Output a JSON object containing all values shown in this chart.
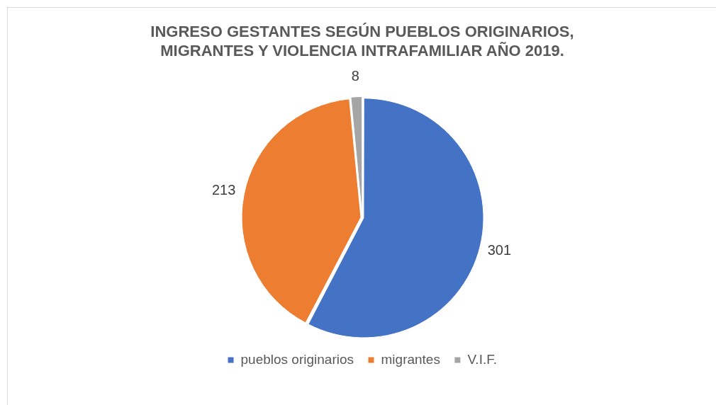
{
  "chart_data": {
    "type": "pie",
    "title": "INGRESO GESTANTES SEGÚN PUEBLOS ORIGINARIOS, MIGRANTES Y VIOLENCIA INTRAFAMILIAR AÑO 2019.",
    "categories": [
      "pueblos originarios",
      "migrantes",
      "V.I.F."
    ],
    "values": [
      301,
      213,
      8
    ],
    "colors": [
      "#4472c4",
      "#ed7d31",
      "#a5a5a5"
    ],
    "data_labels": true,
    "legend": "bottom"
  }
}
